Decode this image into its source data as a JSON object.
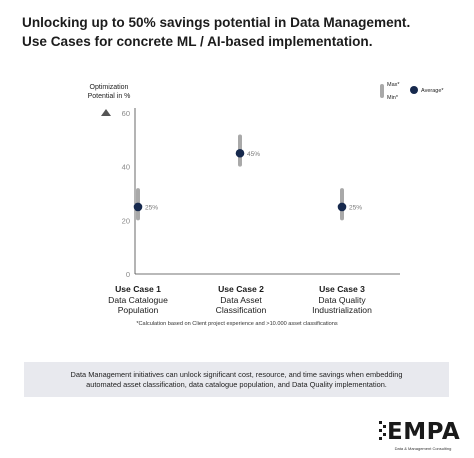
{
  "title": {
    "line1": "Unlocking up to 50% savings potential in Data Management.",
    "line2": "Use Cases for concrete ML / AI-based implementation."
  },
  "colors": {
    "marker": "#16294d",
    "range_bar": "#a9a9a9",
    "axis": "#444444",
    "tick_text": "#888888",
    "info_box": "#e8e9ee"
  },
  "chart_data": {
    "type": "scatter",
    "title": "",
    "ylabel": "Optimization Potential in %",
    "ylabel_lines": [
      "Optimization",
      "Potential in %"
    ],
    "ylim": [
      0,
      60
    ],
    "yticks": [
      0,
      20,
      40,
      60
    ],
    "grid": false,
    "legend": {
      "placement": "top-right",
      "range_label_max": "Max*",
      "range_label_min": "Min*",
      "marker_label": "Average*"
    },
    "categories": [
      {
        "heading": "Use Case 1",
        "lines": [
          "Data Catalogue",
          "Population"
        ],
        "min": 20,
        "max": 32,
        "average": 25,
        "label": "25%"
      },
      {
        "heading": "Use Case 2",
        "lines": [
          "Data Asset",
          "Classification"
        ],
        "min": 40,
        "max": 52,
        "average": 45,
        "label": "45%"
      },
      {
        "heading": "Use Case 3",
        "lines": [
          "Data Quality",
          "Industrialization"
        ],
        "min": 20,
        "max": 32,
        "average": 25,
        "label": "25%"
      }
    ]
  },
  "footnote": "*Calculation based on Client project experience and >10.000 asset classifications",
  "info": {
    "line1": "Data Management initiatives can unlock significant cost, resource, and time savings when embedding",
    "line2": "automated asset classification, data catalogue population, and Data Quality implementation."
  },
  "logo": {
    "word": "EMPA",
    "tagline": "Data & Management Consulting"
  }
}
